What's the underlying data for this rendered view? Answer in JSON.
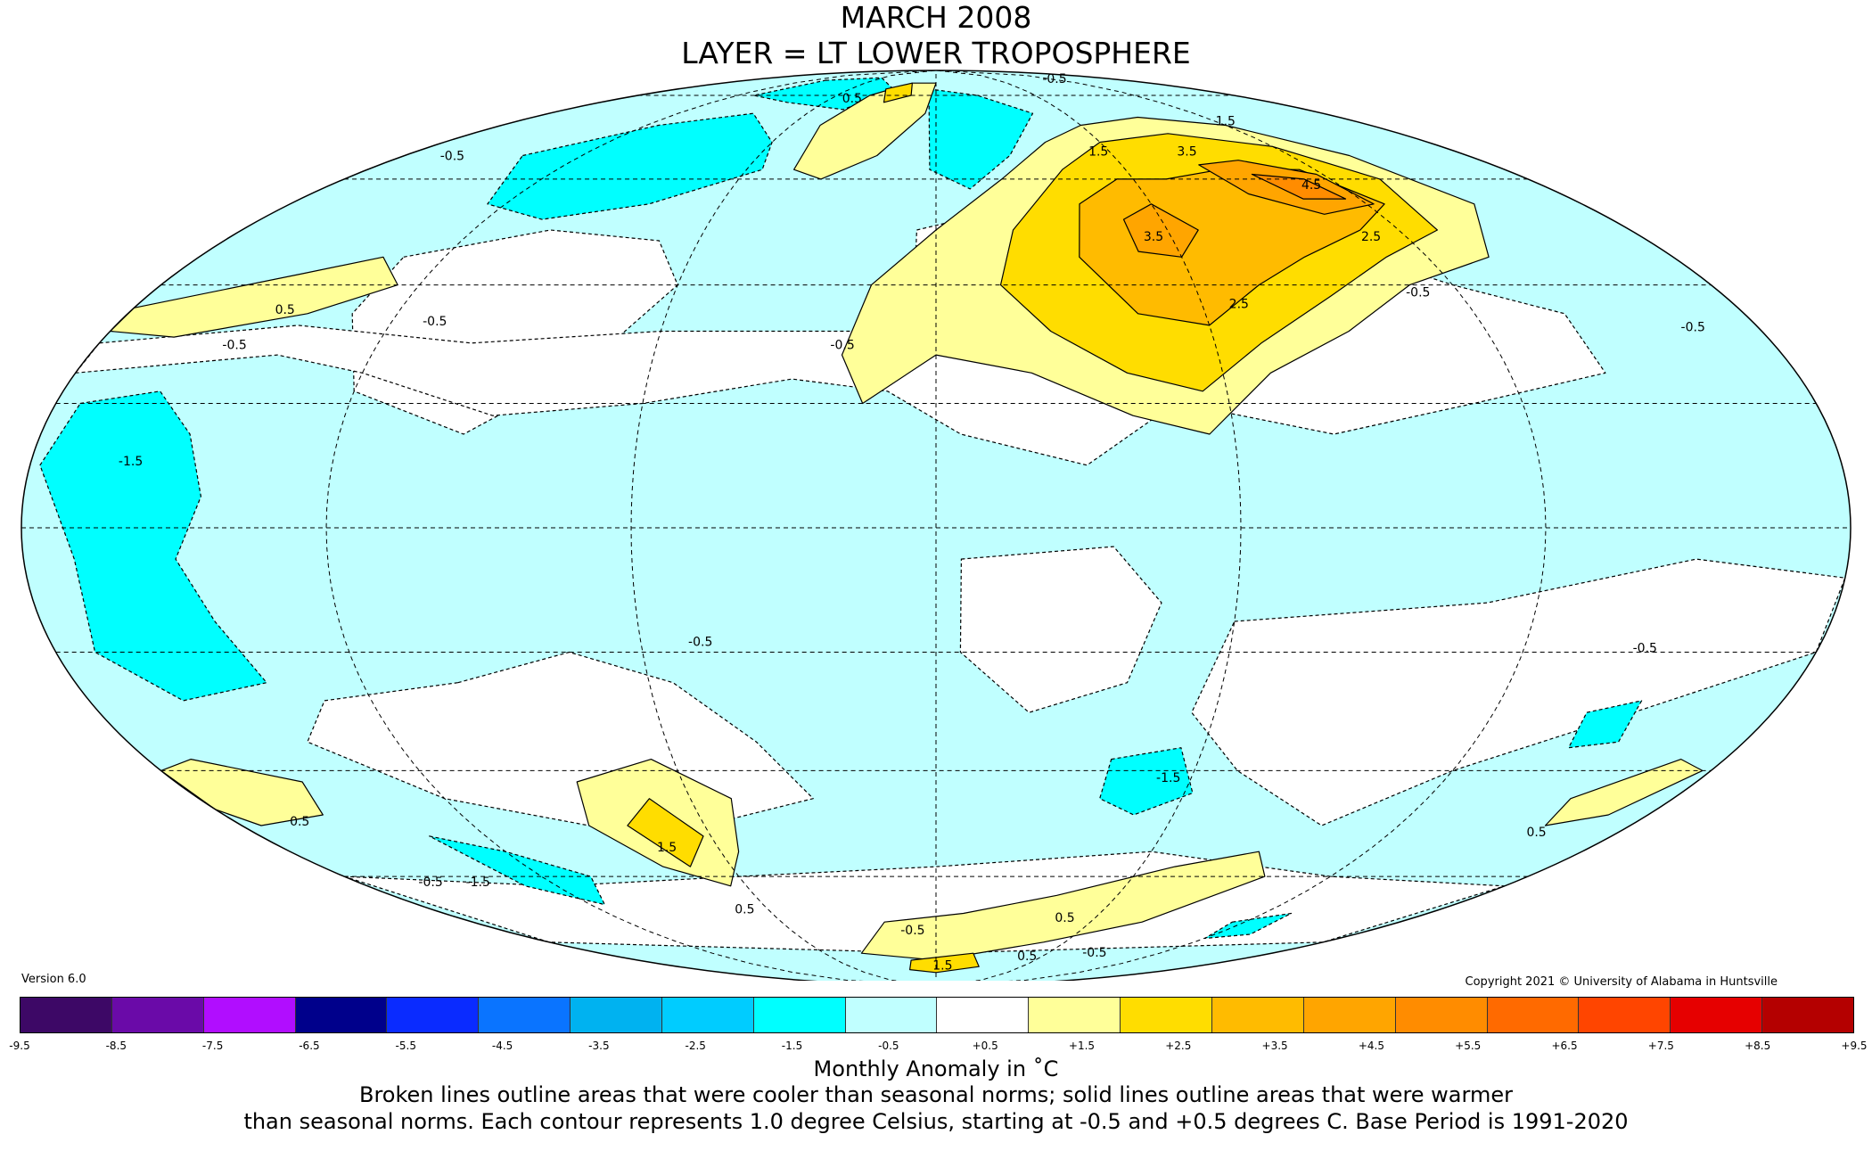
{
  "title": "MARCH 2008",
  "subtitle": "LAYER = LT LOWER TROPOSPHERE",
  "version": "Version 6.0",
  "copyright": "Copyright 2021 © University of Alabama in Huntsville",
  "colorbar": {
    "ticks": [
      "-9.5",
      "-8.5",
      "-7.5",
      "-6.5",
      "-5.5",
      "-4.5",
      "-3.5",
      "-2.5",
      "-1.5",
      "-0.5",
      "+0.5",
      "+1.5",
      "+2.5",
      "+3.5",
      "+4.5",
      "+5.5",
      "+6.5",
      "+7.5",
      "+8.5",
      "+9.5"
    ],
    "colors": [
      "#3d0866",
      "#6a0aa8",
      "#b10dff",
      "#00008b",
      "#0a2bff",
      "#0a74ff",
      "#00b2f0",
      "#00ccff",
      "#00ffff",
      "#c0ffff",
      "#ffffff",
      "#ffff99",
      "#ffdd00",
      "#ffbb00",
      "#ffa500",
      "#ff8c00",
      "#ff6a00",
      "#ff4500",
      "#e60000",
      "#b40000"
    ]
  },
  "unit_label": "Monthly Anomaly in ˚C",
  "note_line1": "Broken lines outline areas that were cooler than seasonal norms; solid lines outline areas that were warmer",
  "note_line2": "than seasonal norms. Each contour represents 1.0 degree Celsius, starting at -0.5 and +0.5 degrees C. Base Period is 1991-2020",
  "contour_labels": [
    {
      "text": "0.5",
      "lon": -45,
      "lat": 78
    },
    {
      "text": "-0.5",
      "lon": -20,
      "lat": 29
    },
    {
      "text": "-0.5",
      "lon": -160,
      "lat": 64
    },
    {
      "text": "0.5",
      "lon": -145,
      "lat": 35
    },
    {
      "text": "-0.5",
      "lon": -150,
      "lat": 29
    },
    {
      "text": "-1.5",
      "lon": -160,
      "lat": 10
    },
    {
      "text": "-0.5",
      "lon": -48,
      "lat": -19
    },
    {
      "text": "-1.5",
      "lon": -145,
      "lat": -62
    },
    {
      "text": "-0.5",
      "lon": -160,
      "lat": -62
    },
    {
      "text": "0.5",
      "lon": -165,
      "lat": -50
    },
    {
      "text": "1.5",
      "lon": -75,
      "lat": -55
    },
    {
      "text": "0.5",
      "lon": -70,
      "lat": -68
    },
    {
      "text": "-0.5",
      "lon": -10,
      "lat": -73
    },
    {
      "text": "1.5",
      "lon": 55,
      "lat": 65
    },
    {
      "text": "3.5",
      "lon": 85,
      "lat": 65
    },
    {
      "text": "3.5",
      "lon": 55,
      "lat": 48
    },
    {
      "text": "4.5",
      "lon": 110,
      "lat": 58
    },
    {
      "text": "2.5",
      "lon": 110,
      "lat": 48
    },
    {
      "text": "2.5",
      "lon": 68,
      "lat": 36
    },
    {
      "text": "-0.5",
      "lon": 110,
      "lat": 38
    },
    {
      "text": "-0.5",
      "lon": 165,
      "lat": 32
    },
    {
      "text": "-1.5",
      "lon": 55,
      "lat": -42
    },
    {
      "text": "0.5",
      "lon": 160,
      "lat": -52
    },
    {
      "text": "-0.5",
      "lon": 145,
      "lat": -20
    },
    {
      "text": "0.5",
      "lon": 50,
      "lat": -70
    },
    {
      "text": "0.5",
      "lon": 55,
      "lat": -80
    },
    {
      "text": "-0.5",
      "lon": 90,
      "lat": -79
    },
    {
      "text": "1.5",
      "lon": 5,
      "lat": -83
    },
    {
      "text": "-0.5",
      "lon": 100,
      "lat": 84
    },
    {
      "text": "1.5",
      "lon": 120,
      "lat": 72
    },
    {
      "text": "-0.5",
      "lon": -110,
      "lat": 33
    }
  ]
}
